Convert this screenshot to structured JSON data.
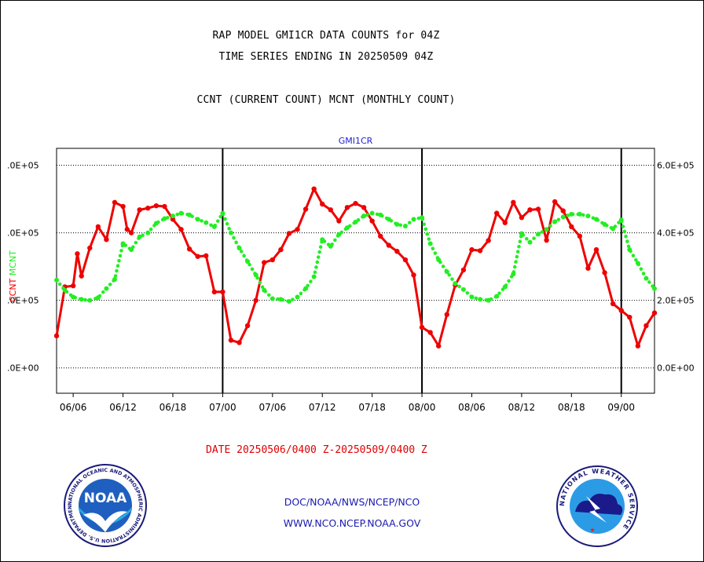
{
  "header": {
    "title_line1": "RAP MODEL GMI1CR DATA COUNTS for 04Z",
    "title_line2": "TIME SERIES ENDING IN 20250509 04Z",
    "subtitle": "CCNT (CURRENT COUNT) MCNT (MONTHLY COUNT)"
  },
  "date_range": "DATE 20250506/0400 Z-20250509/0400 Z",
  "footer": {
    "line1": "DOC/NOAA/NWS/NCEP/NCO",
    "line2": "WWW.NCO.NCEP.NOAA.GOV"
  },
  "logos": {
    "left": {
      "name": "noaa-logo",
      "text": "NOAA",
      "ring_text": "NATIONAL OCEANIC AND ATMOSPHERIC ADMINISTRATION  U.S. DEPARTMENT OF COMMERCE"
    },
    "right": {
      "name": "nws-logo",
      "ring_text": "NATIONAL WEATHER SERVICE"
    }
  },
  "colors": {
    "ccnt": "#ee0000",
    "mcnt": "#22ee22",
    "title": "#2222cc",
    "grid": "#000000"
  },
  "chart_data": {
    "type": "line",
    "title": "GMI1CR",
    "ylabel_left_parts": [
      {
        "text": "CCNT",
        "color": "#ee0000"
      },
      {
        "text": "MCNT",
        "color": "#22ee22"
      }
    ],
    "x_tick_labels": [
      "06/06",
      "06/12",
      "06/18",
      "07/00",
      "07/06",
      "07/12",
      "07/18",
      "08/00",
      "08/06",
      "08/12",
      "08/18",
      "09/00"
    ],
    "x_range": [
      4,
      76
    ],
    "x_ticks": [
      6,
      12,
      18,
      24,
      30,
      36,
      42,
      48,
      54,
      60,
      66,
      72
    ],
    "x_major_lines": [
      24,
      48,
      72
    ],
    "y_range": [
      -75000,
      650000
    ],
    "y_ticks": [
      0,
      200000,
      400000,
      600000
    ],
    "y_tick_labels_left": [
      ".0E+00",
      ".0E+05",
      ".0E+05",
      ".0E+05"
    ],
    "y_tick_labels_right": [
      "0.0E+00",
      "2.0E+05",
      "4.0E+05",
      "6.0E+05"
    ],
    "grid": "dotted horizontal",
    "series": [
      {
        "key": "ccnt",
        "color": "#ee0000",
        "style": "solid",
        "x": [
          4,
          5,
          6,
          6.5,
          7,
          8,
          9,
          10,
          11,
          12,
          12.5,
          13,
          14,
          15,
          16,
          17,
          18,
          19,
          20,
          21,
          22,
          23,
          24,
          25,
          26,
          27,
          28,
          29,
          30,
          31,
          32,
          33,
          34,
          35,
          36,
          37,
          38,
          39,
          40,
          41,
          42,
          43,
          44,
          45,
          46,
          47,
          48,
          49,
          50,
          51,
          52,
          53,
          54,
          55,
          56,
          57,
          58,
          59,
          60,
          61,
          62,
          63,
          64,
          65,
          66,
          67,
          68,
          69,
          70,
          71,
          72,
          73,
          74,
          75,
          76
        ],
        "values": [
          95000,
          240000,
          243000,
          338000,
          272000,
          355000,
          418000,
          380000,
          490000,
          478000,
          410000,
          400000,
          468000,
          473000,
          480000,
          478000,
          440000,
          410000,
          352000,
          330000,
          332000,
          225000,
          225000,
          82000,
          75000,
          125000,
          200000,
          312000,
          320000,
          350000,
          398000,
          410000,
          470000,
          530000,
          485000,
          468000,
          435000,
          475000,
          487000,
          475000,
          435000,
          390000,
          363000,
          345000,
          320000,
          275000,
          120000,
          105000,
          65000,
          158000,
          245000,
          290000,
          350000,
          347000,
          377000,
          458000,
          430000,
          490000,
          445000,
          468000,
          470000,
          378000,
          492000,
          465000,
          418000,
          390000,
          295000,
          350000,
          282000,
          190000,
          170000,
          150000,
          65000,
          125000,
          163000
        ]
      },
      {
        "key": "mcnt",
        "color": "#22ee22",
        "style": "dotted",
        "x": [
          4,
          5,
          6,
          7,
          8,
          9,
          10,
          11,
          12,
          13,
          14,
          15,
          16,
          17,
          18,
          19,
          20,
          21,
          22,
          23,
          24,
          25,
          26,
          27,
          28,
          29,
          30,
          31,
          32,
          33,
          34,
          35,
          36,
          37,
          38,
          39,
          40,
          41,
          42,
          43,
          44,
          45,
          46,
          47,
          48,
          49,
          50,
          51,
          52,
          53,
          54,
          55,
          56,
          57,
          58,
          59,
          60,
          61,
          62,
          63,
          64,
          65,
          66,
          67,
          68,
          69,
          70,
          71,
          72,
          73,
          74,
          75,
          76
        ],
        "values": [
          260000,
          230000,
          210000,
          203000,
          200000,
          208000,
          235000,
          262000,
          368000,
          350000,
          388000,
          400000,
          428000,
          442000,
          450000,
          458000,
          453000,
          440000,
          430000,
          418000,
          458000,
          400000,
          355000,
          315000,
          275000,
          230000,
          205000,
          203000,
          197000,
          210000,
          235000,
          270000,
          380000,
          360000,
          395000,
          415000,
          432000,
          450000,
          458000,
          453000,
          440000,
          425000,
          420000,
          440000,
          445000,
          368000,
          320000,
          285000,
          250000,
          232000,
          210000,
          203000,
          200000,
          212000,
          240000,
          278000,
          398000,
          372000,
          396000,
          410000,
          433000,
          447000,
          455000,
          455000,
          450000,
          440000,
          425000,
          412000,
          438000,
          350000,
          310000,
          265000,
          235000
        ]
      }
    ]
  }
}
